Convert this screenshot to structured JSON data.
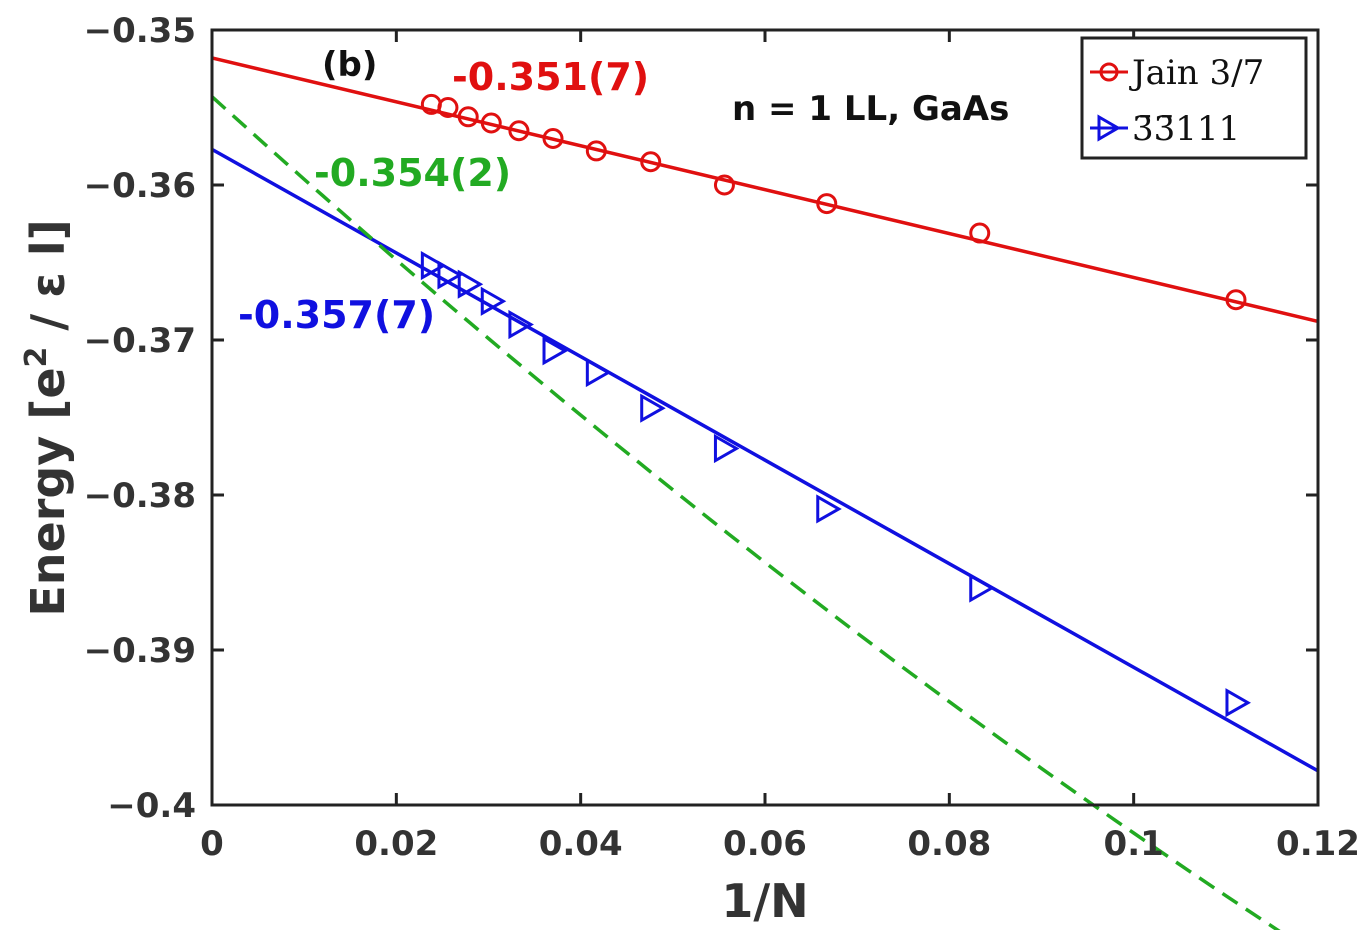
{
  "chart_data": {
    "type": "scatter",
    "panel_label": "(b)",
    "xlabel": "1/N",
    "ylabel_prefix": "Energy [e",
    "ylabel_sup": "2",
    "ylabel_suffix": " / ε l]",
    "xlim": [
      0,
      0.12
    ],
    "ylim": [
      -0.4,
      -0.35
    ],
    "xticks": [
      0,
      0.02,
      0.04,
      0.06,
      0.08,
      0.1,
      0.12
    ],
    "xtick_labels": [
      "0",
      "0.02",
      "0.04",
      "0.06",
      "0.08",
      "0.1",
      "0.12"
    ],
    "yticks": [
      -0.35,
      -0.36,
      -0.37,
      -0.38,
      -0.39,
      -0.4
    ],
    "ytick_labels": [
      "−0.35",
      "−0.36",
      "−0.37",
      "−0.38",
      "−0.39",
      "−0.4"
    ],
    "system_label": "n = 1 LL, GaAs",
    "series": [
      {
        "name": "Jain 3/7",
        "color": "#e01010",
        "marker": "circle",
        "x": [
          0.1111,
          0.0833,
          0.0667,
          0.0556,
          0.0476,
          0.0417,
          0.037,
          0.0333,
          0.0303,
          0.0278,
          0.0256,
          0.0238
        ],
        "y": [
          -0.3674,
          -0.3631,
          -0.3612,
          -0.36,
          -0.3585,
          -0.3578,
          -0.357,
          -0.3565,
          -0.356,
          -0.3556,
          -0.355,
          -0.3548
        ],
        "fit": {
          "kind": "linear",
          "x": [
            0,
            0.12
          ],
          "y": [
            -0.3518,
            -0.3688
          ],
          "style": "solid"
        },
        "annotation": "-0.351(7)"
      },
      {
        "name": "3̄3̄111",
        "color": "#1010e0",
        "marker": "triangle-right",
        "x": [
          0.1111,
          0.0833,
          0.0667,
          0.0556,
          0.0476,
          0.0417,
          0.037,
          0.0333,
          0.0303,
          0.0278,
          0.0256,
          0.0238
        ],
        "y": [
          -0.3934,
          -0.386,
          -0.3809,
          -0.377,
          -0.3744,
          -0.3721,
          -0.3707,
          -0.369,
          -0.3675,
          -0.3664,
          -0.3658,
          -0.3652
        ],
        "fit": {
          "kind": "linear",
          "x": [
            0,
            0.12
          ],
          "y": [
            -0.3577,
            -0.3978
          ],
          "style": "solid"
        },
        "annotation": "-0.357(7)"
      },
      {
        "name": "quadratic fit",
        "color": "#22aa22",
        "marker": "none",
        "show_in_legend": false,
        "fit": {
          "kind": "quadratic",
          "coeffs": [
            -0.3543,
            -0.5394,
            0.6431
          ],
          "x_range": [
            0,
            0.12
          ],
          "style": "dashed"
        },
        "annotation": "-0.354(2)"
      }
    ]
  }
}
